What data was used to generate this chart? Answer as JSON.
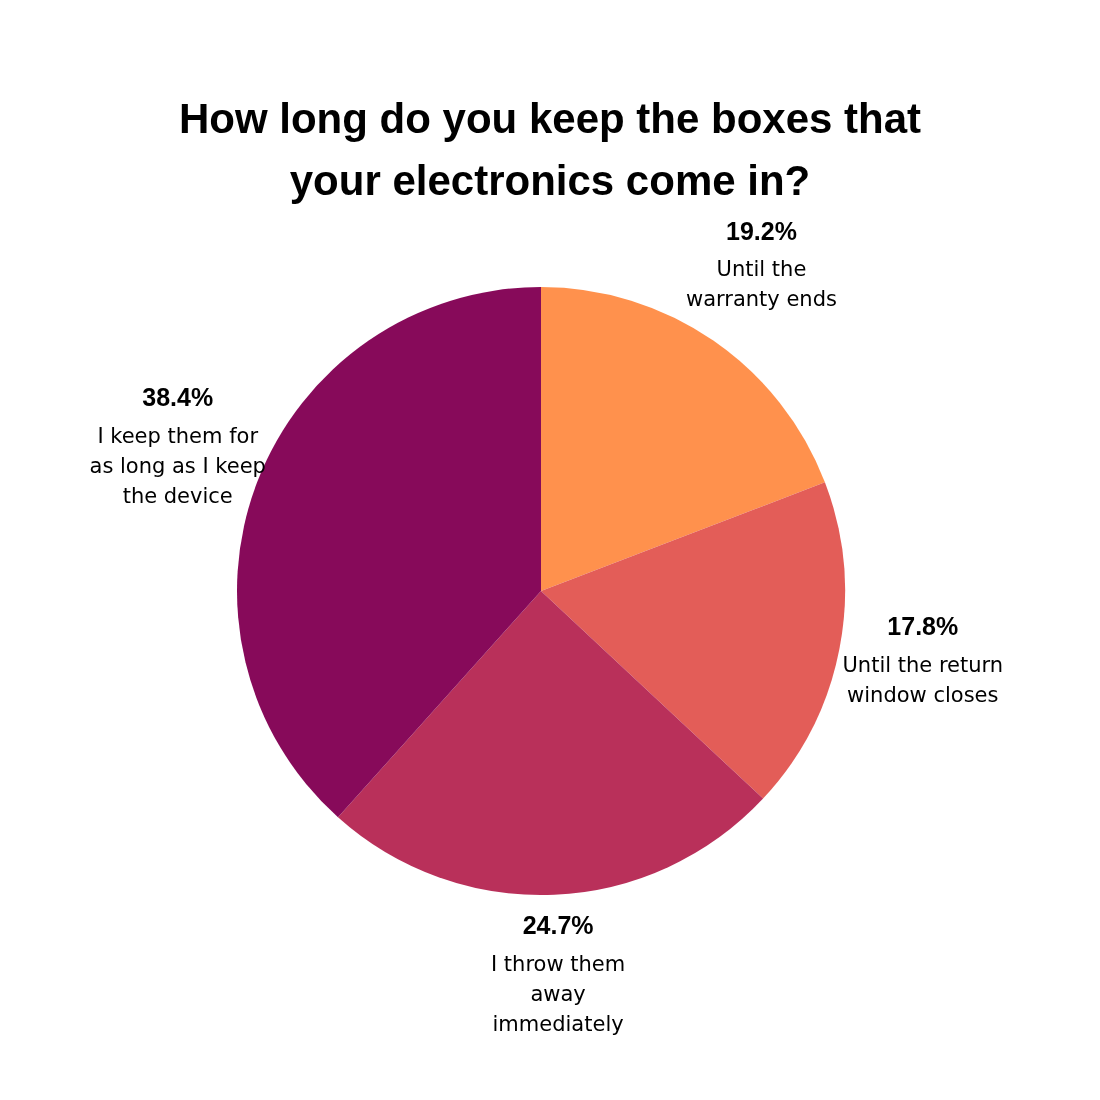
{
  "chart_data": {
    "type": "pie",
    "title": "How long do you keep the boxes that your electronics come in?",
    "categories": [
      "Until the warranty ends",
      "Until the return window closes",
      "I throw them away immediately",
      "I keep them for as long as I keep the device"
    ],
    "values": [
      19.2,
      17.8,
      24.7,
      38.4
    ],
    "value_labels": [
      "19.2%",
      "17.8%",
      "24.7%",
      "38.4%"
    ],
    "colors": [
      "#ff914d",
      "#e35d58",
      "#b9305a",
      "#870a5a"
    ],
    "legend": false
  }
}
